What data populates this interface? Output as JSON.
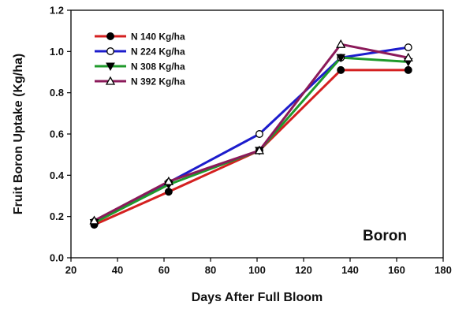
{
  "chart_data": {
    "type": "line",
    "title": "",
    "xlabel": "Days After Full Bloom",
    "ylabel": "Fruit Boron Uptake (Kg/ha)",
    "xlim": [
      20,
      180
    ],
    "ylim": [
      0.0,
      1.2
    ],
    "xticks": [
      20,
      40,
      60,
      80,
      100,
      120,
      140,
      160,
      180
    ],
    "yticks": [
      0.0,
      0.2,
      0.4,
      0.6,
      0.8,
      1.0,
      1.2
    ],
    "xtick_labels": [
      "20",
      "40",
      "60",
      "80",
      "100",
      "120",
      "140",
      "160",
      "180"
    ],
    "ytick_labels": [
      "0.0",
      "0.2",
      "0.4",
      "0.6",
      "0.8",
      "1.0",
      "1.2"
    ],
    "grid": false,
    "legend_position": "top-left",
    "annotation": "Boron",
    "x": [
      30,
      62,
      101,
      136,
      165
    ],
    "series": [
      {
        "name": "N 140 Kg/ha",
        "color": "#d42020",
        "marker": "filled-circle",
        "values": [
          0.16,
          0.32,
          0.52,
          0.91,
          0.91
        ]
      },
      {
        "name": "N 224 Kg/ha",
        "color": "#1c1ccc",
        "marker": "open-circle",
        "values": [
          0.175,
          0.365,
          0.6,
          0.97,
          1.02
        ]
      },
      {
        "name": "N 308 Kg/ha",
        "color": "#1f9a2b",
        "marker": "filled-triangle-down",
        "values": [
          0.17,
          0.355,
          0.52,
          0.97,
          0.95
        ]
      },
      {
        "name": "N 392 Kg/ha",
        "color": "#8b1a5a",
        "marker": "open-triangle-up",
        "values": [
          0.18,
          0.37,
          0.52,
          1.035,
          0.97
        ]
      }
    ]
  }
}
